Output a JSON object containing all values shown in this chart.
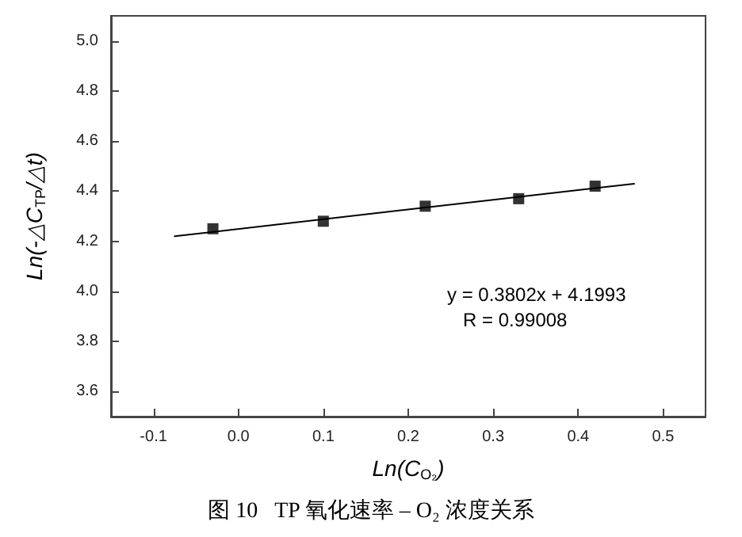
{
  "chart_data": {
    "type": "scatter",
    "title": "图 10   TP 氧化速率 – O₂ 浓度关系",
    "xlabel": "Ln(C$_{O₂}$)",
    "ylabel": "Ln(-△C$_{TP}$/△t)",
    "annotations": [
      "y = 0.3802x + 4.1993",
      "R = 0.99008"
    ],
    "xlim": [
      -0.15,
      0.55
    ],
    "xticks": [
      {
        "value": -0.1,
        "label": "-0.1"
      },
      {
        "value": 0,
        "label": "0.0"
      },
      {
        "value": 0.1,
        "label": "0.1"
      },
      {
        "value": 0.2,
        "label": "0.2"
      },
      {
        "value": 0.3,
        "label": "0.3"
      },
      {
        "value": 0.4,
        "label": "0.4"
      },
      {
        "value": 0.5,
        "label": "0.5"
      }
    ],
    "ylim": [
      3.5,
      5.1
    ],
    "yticks": [
      {
        "value": 3.6,
        "label": "3.6"
      },
      {
        "value": 3.8,
        "label": "3.8"
      },
      {
        "value": 4,
        "label": "4.0"
      },
      {
        "value": 4.2,
        "label": "4.2"
      },
      {
        "value": 4.4,
        "label": "4.4"
      },
      {
        "value": 4.6,
        "label": "4.6"
      },
      {
        "value": 4.8,
        "label": "4.8"
      },
      {
        "value": 5,
        "label": "5.0"
      }
    ],
    "marker": "square",
    "series": [
      {
        "color": "#000000",
        "x": [
          -0.03,
          0.1,
          0.22,
          0.33,
          0.42
        ],
        "values": [
          4.25,
          4.28,
          4.34,
          4.37,
          4.42
        ]
      },
      {
        "type": "line",
        "color": "#000000",
        "x": [
          -0.075,
          0.466
        ],
        "values": [
          4.22,
          4.43
        ],
        "marker": "none",
        "line_style": "solid"
      }
    ]
  }
}
